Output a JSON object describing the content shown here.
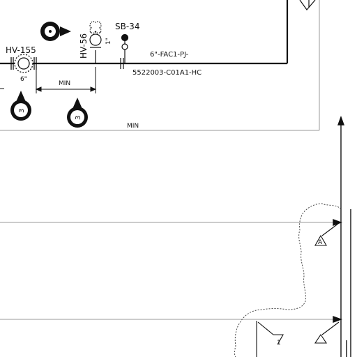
{
  "labels": {
    "valve_tag": "HV-155",
    "valve_size": "6\"",
    "sample_tag": "SB-34",
    "vertical_tag": "HV-56",
    "vertical_size": "1\"",
    "line_spec": "6\"-FAC1-PJ-",
    "line_number": "5522003-C01A1-HC",
    "dim_min_1": "MIN",
    "dim_min_2": "MIN"
  },
  "callouts": {
    "bubble_1": "3",
    "bubble_2": "3",
    "bubble_top": ""
  },
  "marks": {
    "delta_1": "A",
    "delta_2": "1"
  },
  "colors": {
    "line": "#111111",
    "frame": "#9a9a9a",
    "revision_cloud": "#444444"
  }
}
